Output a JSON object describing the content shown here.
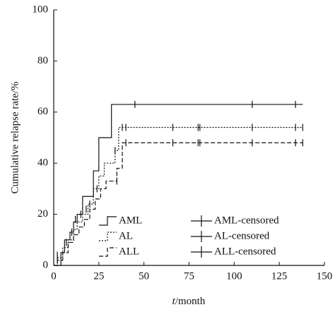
{
  "chart_data": {
    "type": "step",
    "ylabel": "Cumulative relapse rate/%",
    "xlabel": [
      "t",
      "/month"
    ],
    "xlim": [
      0,
      150
    ],
    "xticks": [
      0,
      25,
      50,
      75,
      100,
      125,
      150
    ],
    "ylim": [
      0,
      100
    ],
    "yticks": [
      0,
      20,
      40,
      60,
      80,
      100
    ],
    "color": "#111111",
    "series": [
      {
        "name": "AML",
        "style": "step",
        "dash": "none",
        "x": [
          0,
          4,
          6,
          9,
          11,
          13,
          16,
          22,
          25,
          32,
          138
        ],
        "values": [
          0,
          5,
          10,
          13,
          17,
          20,
          27,
          37,
          50,
          63,
          63
        ]
      },
      {
        "name": "AL",
        "style": "step",
        "dash": "2,2",
        "x": [
          0,
          2,
          5,
          8,
          11,
          13,
          16,
          19,
          22,
          25,
          28,
          34,
          36,
          138
        ],
        "values": [
          0,
          3,
          7,
          10,
          14,
          17,
          20,
          24,
          30,
          35,
          40,
          45,
          54,
          54
        ]
      },
      {
        "name": "ALL",
        "style": "step",
        "dash": "6,3",
        "x": [
          0,
          2,
          5,
          8,
          11,
          14,
          17,
          20,
          23,
          26,
          29,
          35,
          38,
          138
        ],
        "values": [
          0,
          2,
          5,
          9,
          12,
          15,
          18,
          22,
          26,
          30,
          33,
          38,
          48,
          48
        ]
      },
      {
        "name": "AML-censored",
        "style": "censor",
        "x": [
          2,
          12,
          45,
          110,
          134
        ],
        "values": [
          2,
          18,
          63,
          63,
          63
        ]
      },
      {
        "name": "AL-censored",
        "style": "censor",
        "x": [
          2,
          10,
          15,
          20,
          34,
          38,
          40,
          66,
          80,
          81,
          110,
          134,
          138
        ],
        "values": [
          3,
          13,
          20,
          24,
          45,
          54,
          54,
          54,
          54,
          54,
          54,
          54,
          54
        ]
      },
      {
        "name": "ALL-censored",
        "style": "censor",
        "x": [
          2,
          7,
          18,
          24,
          35,
          40,
          66,
          80,
          81,
          110,
          134,
          138
        ],
        "values": [
          4,
          9,
          22,
          30,
          33,
          48,
          48,
          48,
          48,
          48,
          48,
          48
        ]
      }
    ]
  }
}
